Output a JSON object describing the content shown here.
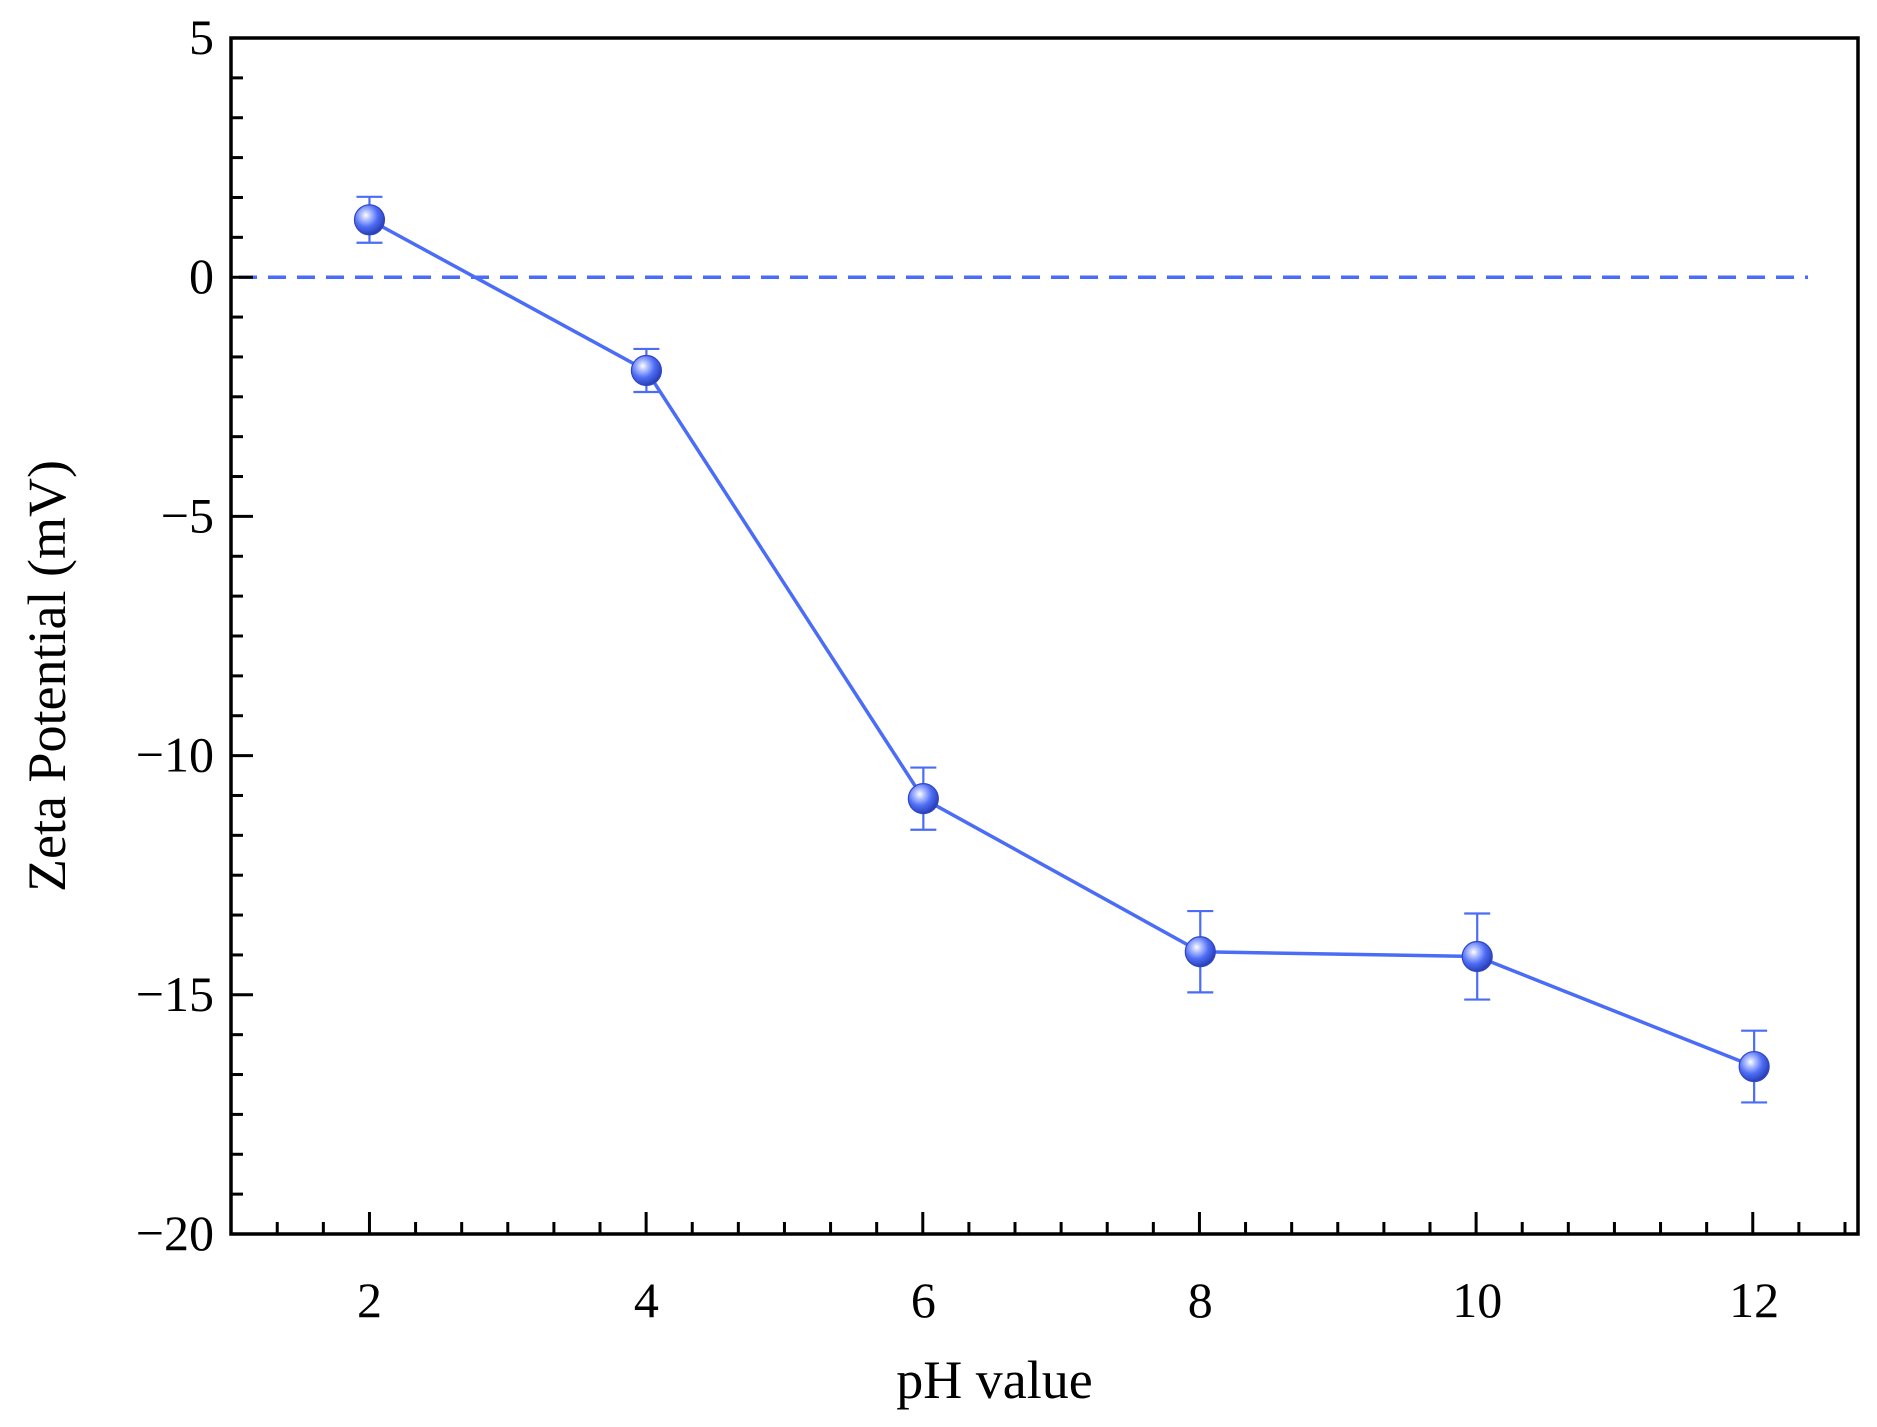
{
  "chart_data": {
    "type": "line",
    "title": "",
    "xlabel": "pH value",
    "ylabel": "Zeta Potential (mV)",
    "xlim": [
      1,
      12.75
    ],
    "ylim": [
      -20,
      5
    ],
    "x_ticks": [
      2,
      4,
      6,
      8,
      10,
      12
    ],
    "x_tick_labels": [
      "2",
      "4",
      "6",
      "8",
      "10",
      "12"
    ],
    "x_minor_step": 0.333,
    "y_ticks": [
      5,
      0,
      -5,
      -10,
      -15,
      -20
    ],
    "y_tick_labels": [
      "5",
      "0",
      "−5",
      "−10",
      "−15",
      "−20"
    ],
    "y_minor_step": 0.833,
    "grid": false,
    "legend": "none",
    "series": [
      {
        "x": [
          2,
          4,
          6,
          8,
          10,
          12
        ],
        "y": [
          1.2,
          -1.95,
          -10.9,
          -14.1,
          -14.2,
          -16.5
        ],
        "error": [
          0.48,
          0.45,
          0.65,
          0.85,
          0.9,
          0.75
        ],
        "color": "#4a6cf7",
        "marker": "sphere"
      }
    ],
    "reference_line": {
      "y": 0,
      "style": "dashed",
      "color": "#4a6cf7"
    }
  }
}
